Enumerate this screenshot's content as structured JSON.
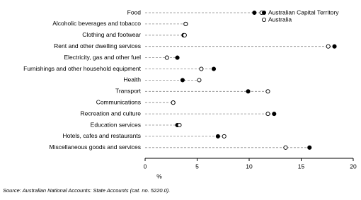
{
  "chart_data": {
    "type": "dot",
    "categories": [
      "Food",
      "Alcoholic beverages and tobacco",
      "Clothing and footwear",
      "Rent and other dwelling services",
      "Electricity, gas and other fuel",
      "Furnishings and other household equipment",
      "Health",
      "Transport",
      "Communications",
      "Recreation and culture",
      "Education services",
      "Hotels, cafes and restaurants",
      "Miscellaneous goods and services"
    ],
    "series": [
      {
        "name": "Australian Capital Territory",
        "color": "#000000",
        "marker": "filled",
        "values": [
          10.5,
          3.9,
          3.7,
          18.2,
          3.1,
          6.6,
          3.6,
          9.9,
          2.7,
          12.4,
          3.1,
          7.0,
          15.8
        ]
      },
      {
        "name": "Australia",
        "color": "#000000",
        "marker": "open",
        "values": [
          11.2,
          3.9,
          3.8,
          17.6,
          2.1,
          5.4,
          5.2,
          11.8,
          2.7,
          11.8,
          3.3,
          7.6,
          13.5
        ]
      }
    ],
    "xlabel": "%",
    "xlim": [
      0,
      20
    ],
    "xticks": [
      0,
      5,
      10,
      15,
      20
    ],
    "legend": "top-right",
    "source": "Source: Australian National Accounts: State Accounts (cat. no. 5220.0)."
  }
}
